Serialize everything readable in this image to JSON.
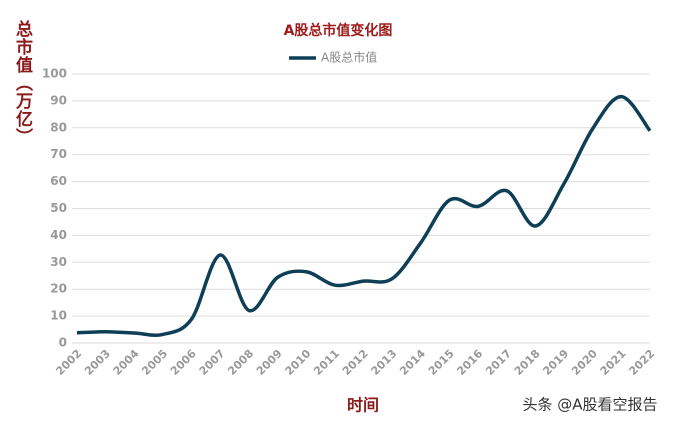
{
  "chart_data": {
    "type": "line",
    "title": "A股总市值变化图",
    "y_label": "总市值（万亿）",
    "x_label": "时间",
    "watermark": "头条 @A股看空报告",
    "categories": [
      "2002",
      "2003",
      "2004",
      "2005",
      "2006",
      "2007",
      "2008",
      "2009",
      "2010",
      "2011",
      "2012",
      "2013",
      "2014",
      "2015",
      "2016",
      "2017",
      "2018",
      "2019",
      "2020",
      "2021",
      "2022"
    ],
    "series": [
      {
        "name": "A股总市值",
        "color": "#0f3e57",
        "values": [
          3.8,
          4.2,
          3.7,
          3.2,
          8.9,
          32.7,
          12.1,
          24.4,
          26.5,
          21.5,
          23.0,
          23.9,
          37.3,
          53.1,
          50.8,
          56.6,
          43.5,
          59.3,
          79.7,
          91.6,
          78.9
        ]
      }
    ],
    "ylim": [
      0,
      100
    ],
    "yticks": [
      0,
      10,
      20,
      30,
      40,
      50,
      60,
      70,
      80,
      90,
      100
    ],
    "grid": true
  }
}
